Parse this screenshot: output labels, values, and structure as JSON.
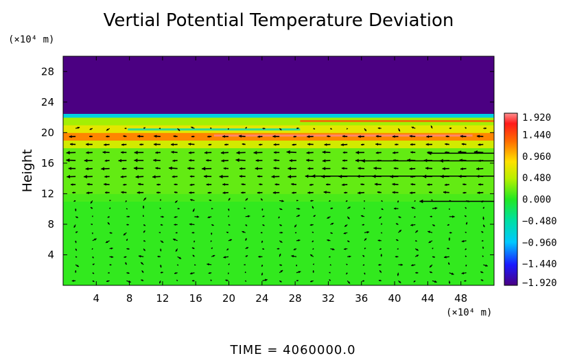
{
  "chart_data": {
    "type": "heatmap",
    "title": "Vertial Potential Temperature Deviation",
    "ylabel": "Height",
    "x_unit": "(×10⁴ m)",
    "y_unit": "(×10⁴ m)",
    "xlim": [
      0,
      52
    ],
    "ylim": [
      0,
      30
    ],
    "xticks": [
      "4",
      "8",
      "12",
      "16",
      "20",
      "24",
      "28",
      "32",
      "36",
      "40",
      "44",
      "48"
    ],
    "xtick_values": [
      4,
      8,
      12,
      16,
      20,
      24,
      28,
      32,
      36,
      40,
      44,
      48
    ],
    "yticks": [
      "4",
      "8",
      "12",
      "16",
      "20",
      "24",
      "28"
    ],
    "ytick_values": [
      4,
      8,
      12,
      16,
      20,
      24,
      28
    ],
    "colorbar": {
      "labels": [
        "1.920",
        "1.440",
        "0.960",
        "0.480",
        "0.000",
        "−0.480",
        "−0.960",
        "−1.440",
        "−1.920"
      ],
      "values": [
        1.92,
        1.44,
        0.96,
        0.48,
        0.0,
        -0.48,
        -0.96,
        -1.44,
        -1.92
      ],
      "range": [
        -1.92,
        1.92
      ]
    },
    "field_layers": [
      {
        "y0": 0,
        "y1": 11,
        "value": 0.05
      },
      {
        "y0": 11,
        "y1": 12,
        "value": 0.12
      },
      {
        "y0": 12,
        "y1": 18,
        "value": 0.2
      },
      {
        "y0": 18,
        "y1": 19,
        "value": 0.6
      },
      {
        "y0": 19,
        "y1": 20,
        "value": 1.2
      },
      {
        "y0": 20,
        "y1": 21,
        "value": 0.7
      },
      {
        "y0": 21,
        "y1": 22,
        "value": 0.4
      },
      {
        "y0": 22,
        "y1": 22.5,
        "value": -0.8
      },
      {
        "y0": 22.5,
        "y1": 30,
        "value": -1.92
      }
    ],
    "vectors": "wind arrows; strong leftward flow between heights 12 and 20"
  },
  "footer": {
    "time_label": "TIME  =  4060000.0"
  }
}
